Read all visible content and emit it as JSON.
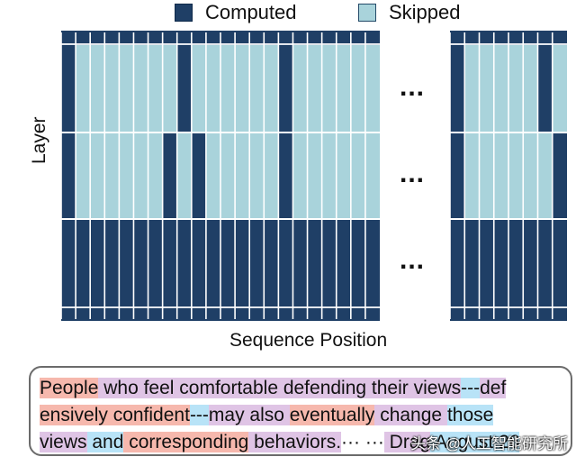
{
  "legend": {
    "computed_label": "Computed",
    "skipped_label": "Skipped",
    "computed_color": "#1f3f66",
    "skipped_color": "#a9d3db"
  },
  "axes": {
    "ylabel": "Layer",
    "xlabel": "Sequence Position"
  },
  "grid": {
    "ellipsis": "...",
    "layer_bands": 3,
    "left_block_columns": 22,
    "right_block_columns": 8,
    "column_pattern_band1": [
      "C",
      "S",
      "S",
      "S",
      "S",
      "S",
      "S",
      "S",
      "C",
      "S",
      "S",
      "S",
      "S",
      "S",
      "S",
      "C",
      "S",
      "S",
      "S",
      "S",
      "S",
      "S",
      "C",
      "S",
      "S",
      "S",
      "S",
      "S",
      "C",
      "S"
    ],
    "column_pattern_band2": [
      "C",
      "S",
      "S",
      "S",
      "S",
      "S",
      "S",
      "C",
      "S",
      "C",
      "S",
      "S",
      "S",
      "S",
      "S",
      "C",
      "S",
      "S",
      "S",
      "S",
      "S",
      "S",
      "C",
      "S",
      "S",
      "S",
      "S",
      "S",
      "S",
      "C"
    ],
    "column_pattern_band3": [
      "C",
      "C",
      "C",
      "C",
      "C",
      "C",
      "C",
      "C",
      "C",
      "C",
      "C",
      "C",
      "C",
      "C",
      "C",
      "C",
      "C",
      "C",
      "C",
      "C",
      "C",
      "C",
      "C",
      "C",
      "C",
      "C",
      "C",
      "C",
      "C",
      "C"
    ]
  },
  "text_box": {
    "lines": [
      [
        {
          "text": "People",
          "hl": "red"
        },
        {
          "text": " who feel comfortable defending their views",
          "hl": "purple"
        },
        {
          "text": "---",
          "hl": "blue"
        },
        {
          "text": "def",
          "hl": "purple"
        }
      ],
      [
        {
          "text": "ensively confident",
          "hl": "red"
        },
        {
          "text": "---",
          "hl": "blue"
        },
        {
          "text": "may also ",
          "hl": "purple"
        },
        {
          "text": "eventually",
          "hl": "red"
        },
        {
          "text": " change ",
          "hl": "purple"
        },
        {
          "text": "those",
          "hl": "blue"
        }
      ],
      [
        {
          "text": "views",
          "hl": "purple"
        },
        {
          "text": " and",
          "hl": "blue"
        },
        {
          "text": " corresponding",
          "hl": "red"
        },
        {
          "text": " behaviors.",
          "hl": "purple"
        },
        {
          "text": "··· ···",
          "hl": "none"
        },
        {
          "text": " Drag",
          "hl": "purple"
        },
        {
          "text": " August 26",
          "hl": "blue"
        }
      ]
    ]
  },
  "watermark": "头条 @人工智能研究所"
}
